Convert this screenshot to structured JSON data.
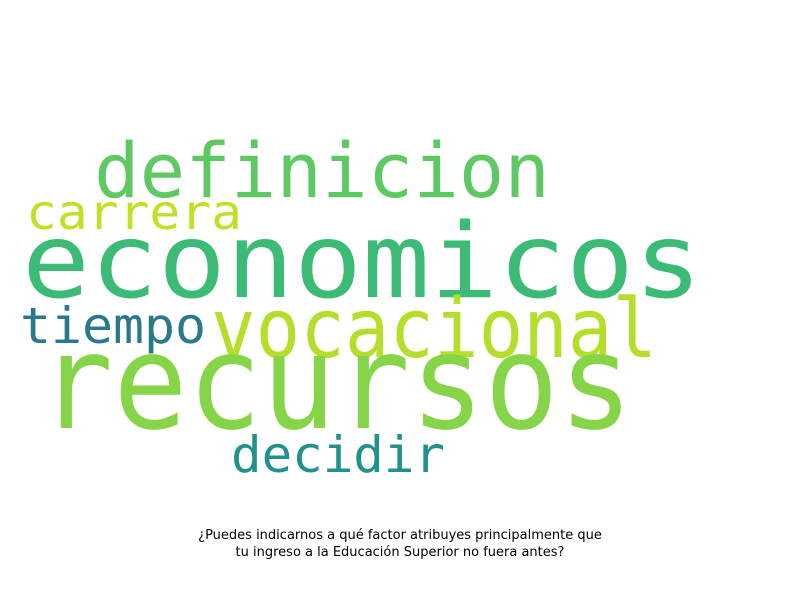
{
  "word_cloud": {
    "words": [
      {
        "text": "definicion",
        "color": "#5ec962"
      },
      {
        "text": "carrera",
        "color": "#c2df23"
      },
      {
        "text": "economicos",
        "color": "#3bbb75"
      },
      {
        "text": "tiempo",
        "color": "#2a788e"
      },
      {
        "text": "vocacional",
        "color": "#b5de2b"
      },
      {
        "text": "recursos",
        "color": "#86d549"
      },
      {
        "text": "decidir",
        "color": "#21918c"
      }
    ]
  },
  "caption": {
    "line1": "¿Puedes indicarnos a qué factor atribuyes principalmente que",
    "line2": "tu ingreso a la Educación Superior no fuera antes?"
  }
}
